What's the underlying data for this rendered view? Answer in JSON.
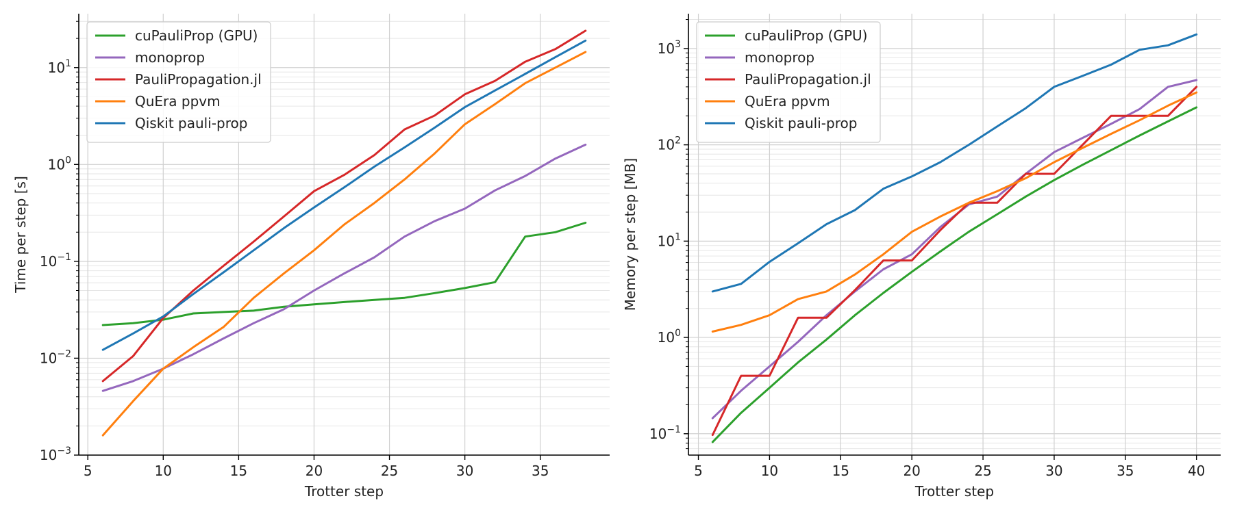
{
  "colors": {
    "cuPauliProp (GPU)": "#2ca02c",
    "monoprop": "#9467bd",
    "PauliPropagation.jl": "#d62728",
    "QuEra ppvm": "#ff7f0e",
    "Qiskit pauli-prop": "#1f77b4",
    "axis": "#000000",
    "grid_major": "#d0d0d0",
    "grid_minor": "#e6e6e6"
  },
  "chart_data": [
    {
      "type": "line",
      "xlabel": "Trotter step",
      "ylabel": "Time per step [s]",
      "yscale": "log",
      "xlim": [
        4.4,
        39.6
      ],
      "ylim": [
        0.001,
        36
      ],
      "xticks": [
        5,
        10,
        15,
        20,
        25,
        30,
        35
      ],
      "xtick_labels": [
        "5",
        "10",
        "15",
        "20",
        "25",
        "30",
        "35"
      ],
      "yticks": [
        0.001,
        0.01,
        0.1,
        1,
        10
      ],
      "ytick_labels": [
        {
          "base": "10",
          "exp": "−3"
        },
        {
          "base": "10",
          "exp": "−2"
        },
        {
          "base": "10",
          "exp": "−1"
        },
        {
          "base": "10",
          "exp": "0"
        },
        {
          "base": "10",
          "exp": "1"
        }
      ],
      "grid": true,
      "legend_loc": "upper left",
      "x": [
        6,
        8,
        10,
        12,
        14,
        16,
        18,
        20,
        22,
        24,
        26,
        28,
        30,
        32,
        34,
        36,
        38
      ],
      "series": [
        {
          "name": "cuPauliProp (GPU)",
          "values": [
            0.022,
            0.023,
            0.025,
            0.029,
            0.03,
            0.031,
            0.034,
            0.036,
            0.038,
            0.04,
            0.042,
            0.047,
            0.053,
            0.061,
            0.18,
            0.2,
            0.25
          ]
        },
        {
          "name": "monoprop",
          "values": [
            0.0046,
            0.0058,
            0.0078,
            0.011,
            0.016,
            0.023,
            0.032,
            0.05,
            0.075,
            0.11,
            0.18,
            0.26,
            0.35,
            0.54,
            0.76,
            1.15,
            1.6
          ]
        },
        {
          "name": "PauliPropagation.jl",
          "values": [
            0.0058,
            0.0105,
            0.026,
            0.05,
            0.09,
            0.16,
            0.29,
            0.53,
            0.78,
            1.25,
            2.3,
            3.2,
            5.3,
            7.3,
            11.5,
            15.5,
            24
          ]
        },
        {
          "name": "QuEra ppvm",
          "values": [
            0.0016,
            0.0036,
            0.0078,
            0.013,
            0.021,
            0.042,
            0.075,
            0.13,
            0.24,
            0.4,
            0.7,
            1.3,
            2.6,
            4.2,
            6.9,
            10,
            14.5
          ]
        },
        {
          "name": "Qiskit pauli-prop",
          "values": [
            0.0122,
            0.018,
            0.027,
            0.046,
            0.077,
            0.13,
            0.22,
            0.36,
            0.58,
            0.95,
            1.5,
            2.4,
            3.9,
            5.8,
            8.6,
            12.8,
            19
          ]
        }
      ]
    },
    {
      "type": "line",
      "xlabel": "Trotter step",
      "ylabel": "Memory per step [MB]",
      "yscale": "log",
      "xlim": [
        4.3,
        41.7
      ],
      "ylim": [
        0.06,
        2300
      ],
      "xticks": [
        5,
        10,
        15,
        20,
        25,
        30,
        35,
        40
      ],
      "xtick_labels": [
        "5",
        "10",
        "15",
        "20",
        "25",
        "30",
        "35",
        "40"
      ],
      "yticks": [
        0.1,
        1,
        10,
        100,
        1000
      ],
      "ytick_labels": [
        {
          "base": "10",
          "exp": "−1"
        },
        {
          "base": "10",
          "exp": "0"
        },
        {
          "base": "10",
          "exp": "1"
        },
        {
          "base": "10",
          "exp": "2"
        },
        {
          "base": "10",
          "exp": "3"
        }
      ],
      "grid": true,
      "legend_loc": "upper left",
      "x": [
        6,
        8,
        10,
        12,
        14,
        16,
        18,
        20,
        22,
        24,
        26,
        28,
        30,
        32,
        34,
        36,
        38,
        40
      ],
      "series": [
        {
          "name": "cuPauliProp (GPU)",
          "values": [
            0.082,
            0.165,
            0.3,
            0.55,
            0.95,
            1.7,
            2.9,
            4.8,
            7.8,
            12.5,
            19,
            29,
            43,
            62,
            88,
            125,
            175,
            245
          ]
        },
        {
          "name": "monoprop",
          "values": [
            0.145,
            0.28,
            0.5,
            0.9,
            1.7,
            3.0,
            5.1,
            7.3,
            14,
            24,
            29,
            50,
            84,
            118,
            165,
            235,
            400,
            470
          ]
        },
        {
          "name": "PauliPropagation.jl",
          "values": [
            0.097,
            0.4,
            0.4,
            1.6,
            1.6,
            3.1,
            6.3,
            6.3,
            13,
            25,
            25,
            50,
            50,
            100,
            200,
            200,
            200,
            400
          ]
        },
        {
          "name": "QuEra ppvm",
          "values": [
            1.15,
            1.35,
            1.7,
            2.5,
            3.0,
            4.5,
            7.3,
            12.5,
            18,
            25,
            33,
            45,
            66,
            93,
            130,
            180,
            255,
            350
          ]
        },
        {
          "name": "Qiskit pauli-prop",
          "values": [
            3.0,
            3.6,
            6.1,
            9.5,
            15,
            21,
            35,
            47,
            66,
            100,
            155,
            240,
            400,
            520,
            680,
            970,
            1080,
            1400
          ]
        }
      ]
    }
  ]
}
